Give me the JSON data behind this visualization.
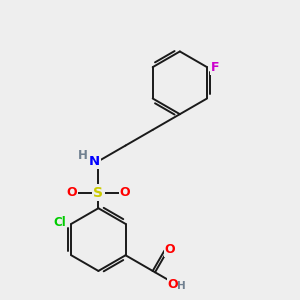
{
  "background_color": "#eeeeee",
  "bond_color": "#1a1a1a",
  "atom_colors": {
    "F": "#cc00cc",
    "N": "#0000ff",
    "H": "#708090",
    "S": "#cccc00",
    "O": "#ff0000",
    "Cl": "#00cc00"
  },
  "figsize": [
    3.0,
    3.0
  ],
  "dpi": 100
}
